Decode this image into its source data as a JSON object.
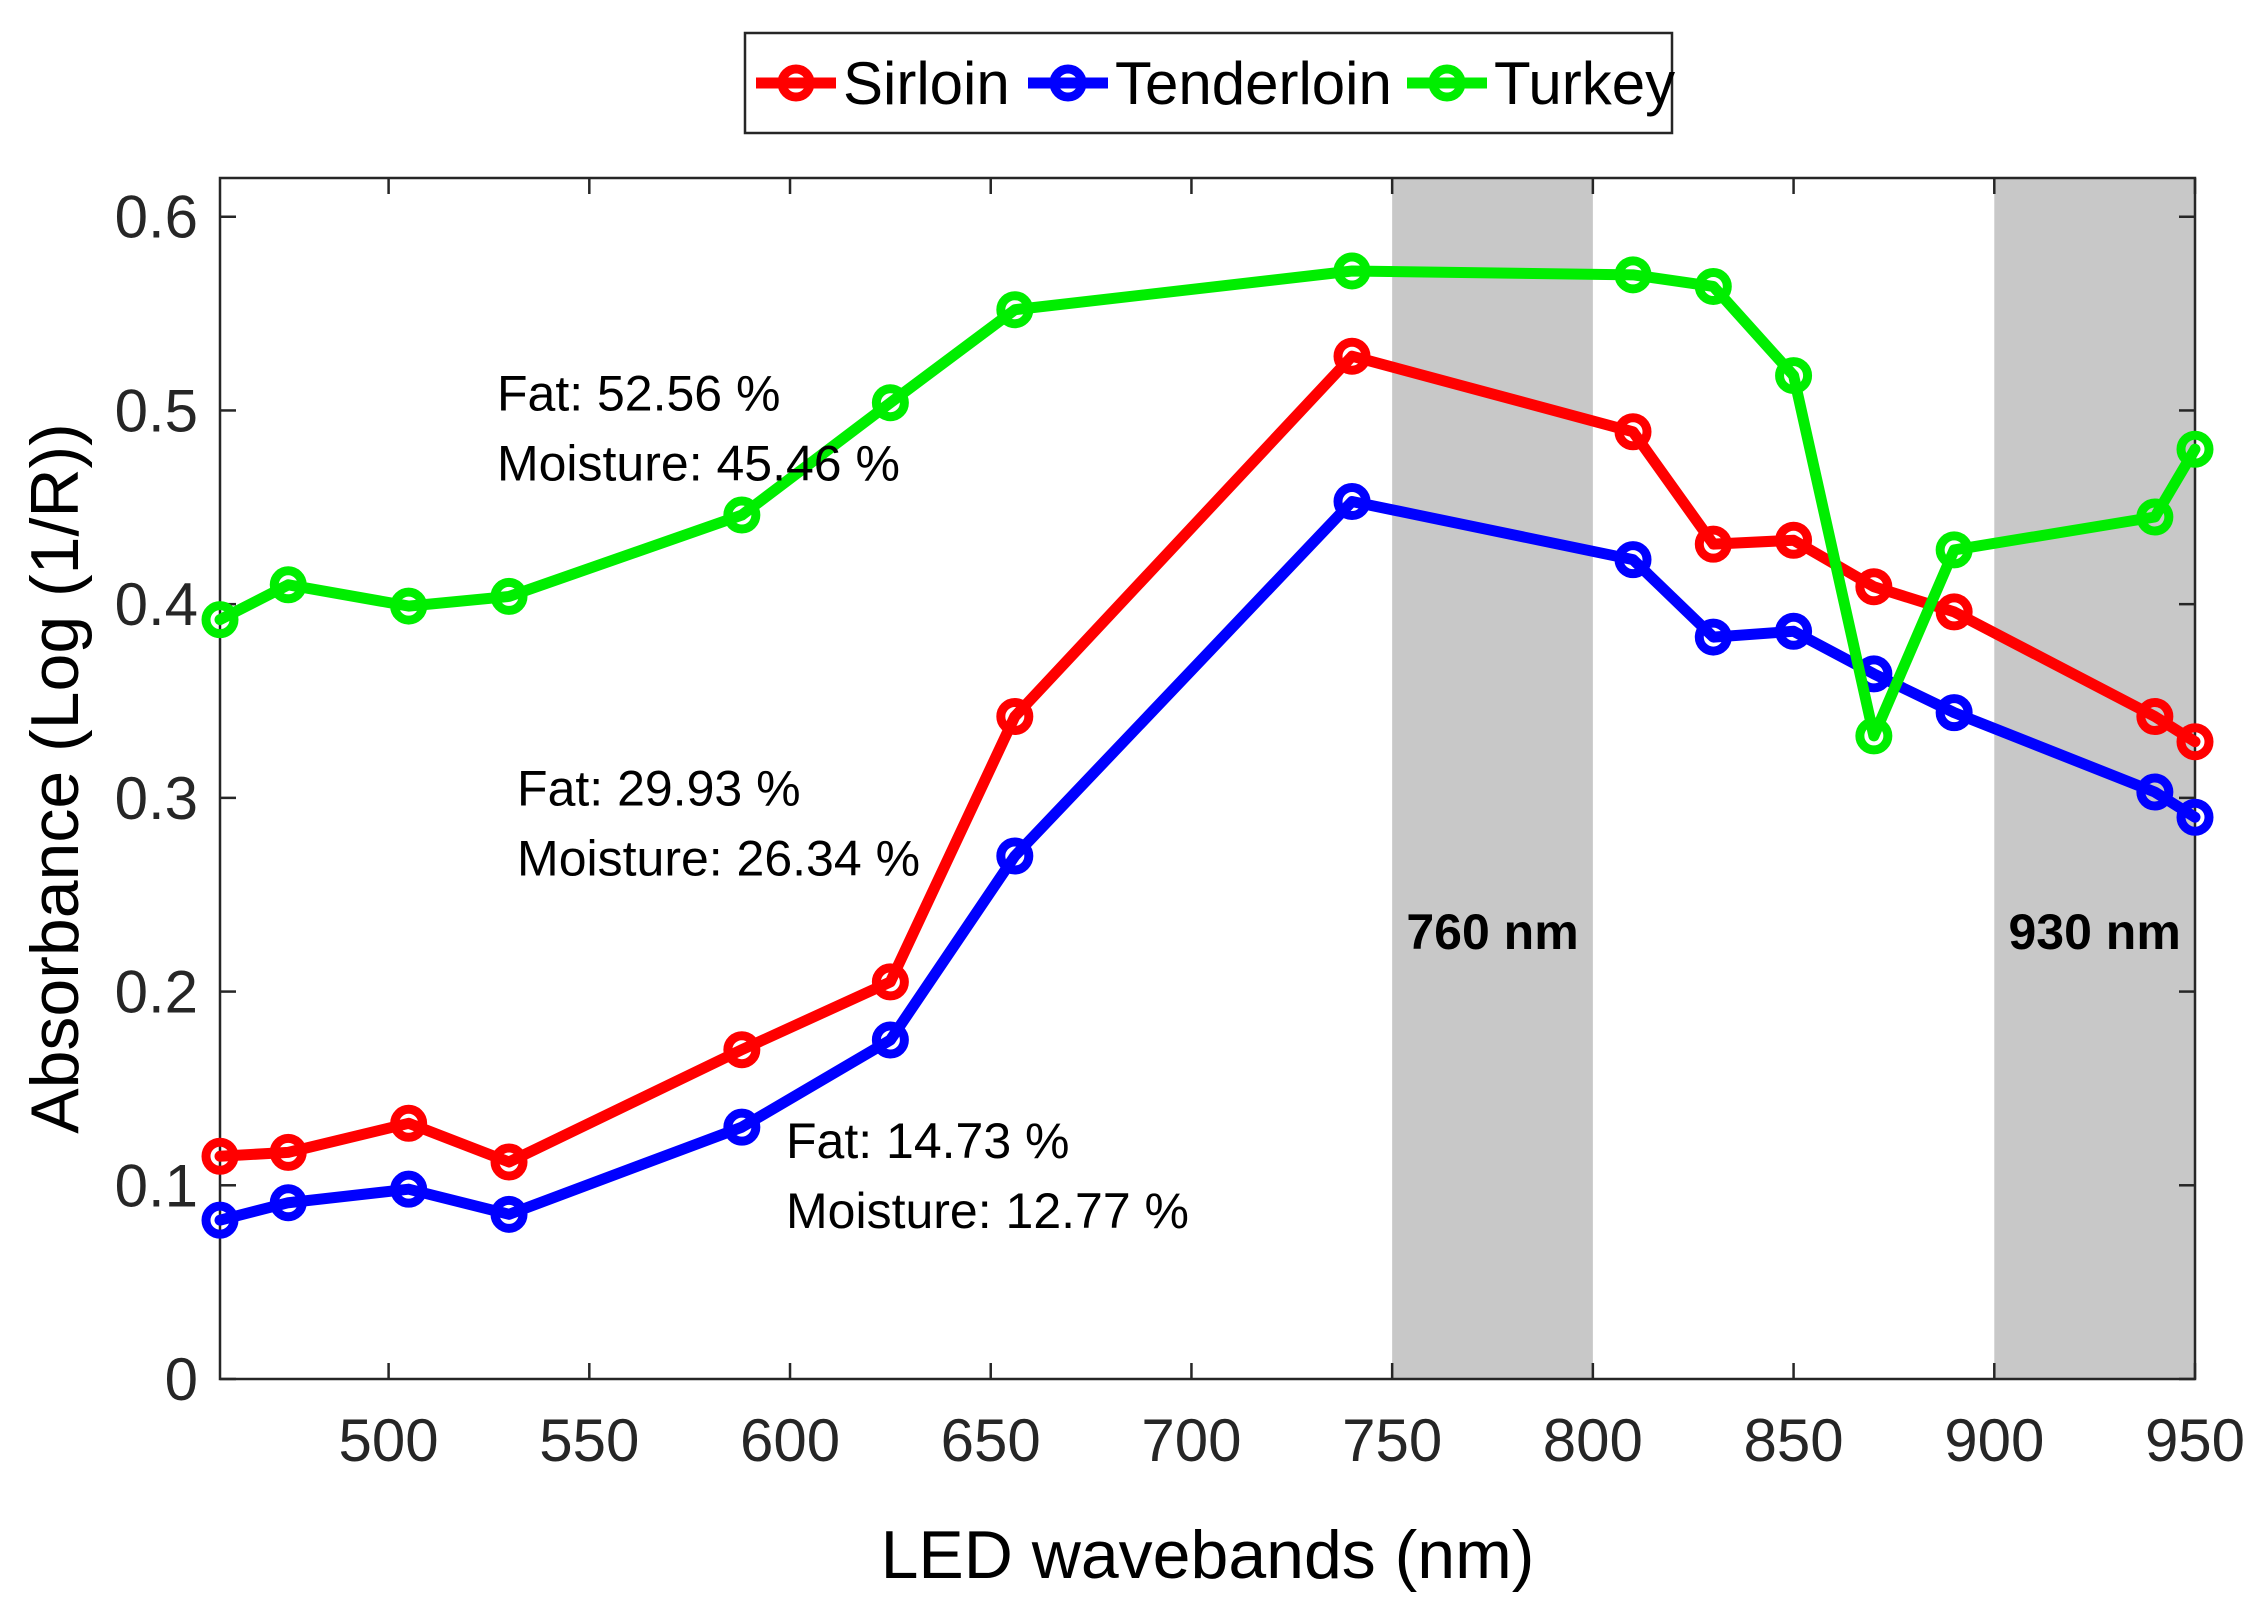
{
  "chart_data": {
    "type": "line",
    "xlabel": "LED wavebands (nm)",
    "ylabel": "Absorbance (Log (1/R))",
    "xlim": [
      458,
      950
    ],
    "ylim": [
      0,
      0.62
    ],
    "x_ticks": [
      500,
      550,
      600,
      650,
      700,
      750,
      800,
      850,
      900,
      950
    ],
    "y_ticks": [
      0,
      0.1,
      0.2,
      0.3,
      0.4,
      0.5,
      0.6
    ],
    "y_tick_labels": [
      "0",
      "0.1",
      "0.2",
      "0.3",
      "0.4",
      "0.5",
      "0.6"
    ],
    "grid": false,
    "legend_position": "top-center",
    "x": [
      458,
      475,
      505,
      530,
      588,
      625,
      656,
      740,
      810,
      830,
      850,
      870,
      890,
      940,
      950
    ],
    "series": [
      {
        "name": "Sirloin",
        "color": "#ff0000",
        "values": [
          0.115,
          0.117,
          0.132,
          0.112,
          0.17,
          0.205,
          0.342,
          0.528,
          0.489,
          0.431,
          0.433,
          0.409,
          0.396,
          0.342,
          0.329
        ]
      },
      {
        "name": "Tenderloin",
        "color": "#0000ff",
        "values": [
          0.082,
          0.091,
          0.098,
          0.085,
          0.13,
          0.175,
          0.27,
          0.453,
          0.423,
          0.383,
          0.386,
          0.364,
          0.344,
          0.303,
          0.29
        ]
      },
      {
        "name": "Turkey",
        "color": "#00ee00",
        "values": [
          0.392,
          0.41,
          0.399,
          0.404,
          0.446,
          0.504,
          0.552,
          0.572,
          0.57,
          0.564,
          0.518,
          0.332,
          0.428,
          0.445,
          0.48
        ]
      }
    ],
    "shaded_bands": [
      {
        "x0": 750,
        "x1": 800,
        "label": "760 nm",
        "color": "#c8c8c8"
      },
      {
        "x0": 900,
        "x1": 950,
        "label": "930 nm",
        "color": "#c8c8c8"
      }
    ],
    "annotations": [
      {
        "lines": [
          "Fat: 52.56 %",
          "Moisture: 45.46 %"
        ],
        "x": 527,
        "y": 0.5
      },
      {
        "lines": [
          "Fat: 29.93 %",
          "Moisture: 26.34 %"
        ],
        "x": 532,
        "y": 0.296
      },
      {
        "lines": [
          "Fat: 14.73 %",
          "Moisture: 12.77 %"
        ],
        "x": 599,
        "y": 0.114
      }
    ]
  }
}
